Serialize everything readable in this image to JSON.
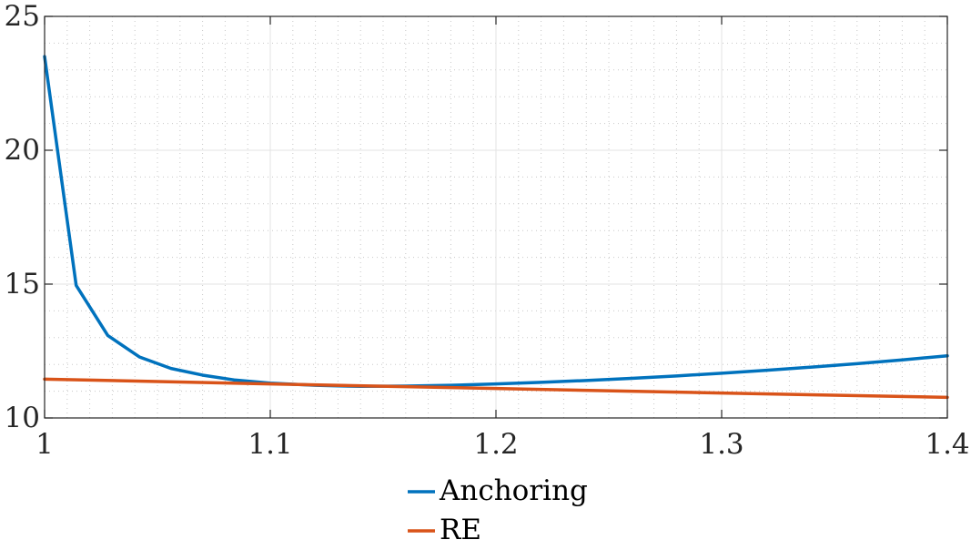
{
  "chart_data": {
    "type": "line",
    "title": "",
    "xlabel": "",
    "ylabel": "",
    "xlim": [
      1,
      1.4
    ],
    "ylim": [
      10,
      25
    ],
    "xticks": [
      1,
      1.1,
      1.2,
      1.3,
      1.4
    ],
    "xtick_labels": [
      "1",
      "1.1",
      "1.2",
      "1.3",
      "1.4"
    ],
    "yticks": [
      10,
      15,
      20,
      25
    ],
    "ytick_labels": [
      "10",
      "15",
      "20",
      "25"
    ],
    "grid": "major solid and minor dotted",
    "legend_position": "bottom-center, outside plot",
    "series": [
      {
        "name": "Anchoring",
        "color": "#0072BD",
        "x": [
          1.0,
          1.014,
          1.028,
          1.042,
          1.056,
          1.07,
          1.084,
          1.1,
          1.12,
          1.14,
          1.16,
          1.18,
          1.2,
          1.22,
          1.24,
          1.26,
          1.28,
          1.3,
          1.32,
          1.34,
          1.36,
          1.38,
          1.4
        ],
        "y": [
          23.5,
          14.95,
          13.08,
          12.28,
          11.85,
          11.6,
          11.42,
          11.3,
          11.22,
          11.18,
          11.19,
          11.22,
          11.27,
          11.33,
          11.4,
          11.48,
          11.57,
          11.67,
          11.78,
          11.9,
          12.03,
          12.17,
          12.32
        ]
      },
      {
        "name": "RE",
        "color": "#D95319",
        "x": [
          1.0,
          1.1,
          1.2,
          1.3,
          1.4
        ],
        "y": [
          11.45,
          11.27,
          11.1,
          10.93,
          10.77
        ]
      }
    ]
  }
}
